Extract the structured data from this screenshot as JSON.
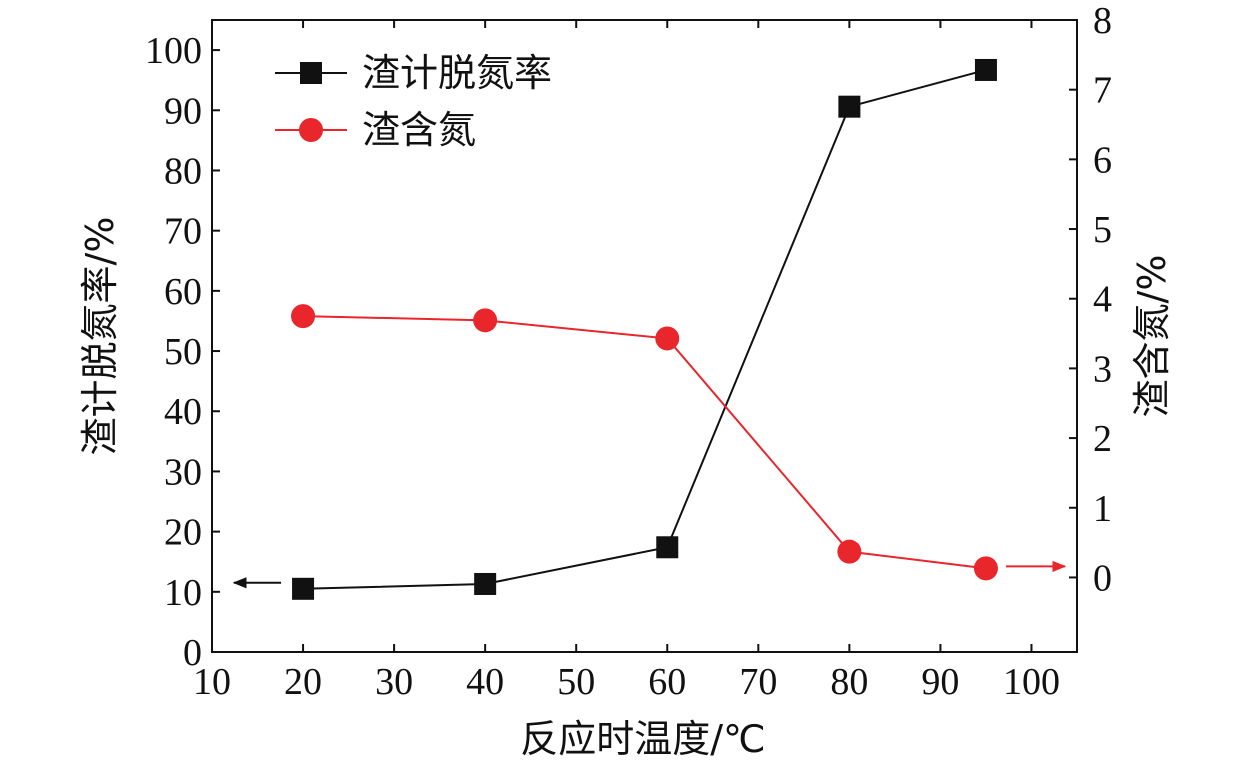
{
  "chart_data": {
    "type": "line",
    "xlabel": "反应时温度/℃",
    "ylabel_left": "渣计脱氮率/%",
    "ylabel_right": "渣含氮/%",
    "xlim": [
      10,
      105
    ],
    "ylim_left": [
      0,
      105
    ],
    "ylim_right": [
      -1.07,
      8
    ],
    "x_ticks": [
      "10",
      "20",
      "30",
      "40",
      "50",
      "60",
      "70",
      "80",
      "90",
      "100"
    ],
    "y_left_ticks": [
      "0",
      "10",
      "20",
      "30",
      "40",
      "50",
      "60",
      "70",
      "80",
      "90",
      "100"
    ],
    "y_right_ticks": [
      "0",
      "1",
      "2",
      "3",
      "4",
      "5",
      "6",
      "7",
      "8"
    ],
    "series": [
      {
        "name": "渣计脱氮率",
        "axis": "left",
        "marker": "square",
        "color": "#111111",
        "x": [
          20,
          40,
          60,
          80,
          95
        ],
        "values": [
          10.5,
          11.3,
          17.4,
          90.6,
          96.7
        ]
      },
      {
        "name": "渣含氮",
        "axis": "right",
        "marker": "circle",
        "color": "#e8262b",
        "x": [
          20,
          40,
          60,
          80,
          95
        ],
        "values": [
          3.75,
          3.69,
          3.43,
          0.37,
          0.13
        ]
      }
    ],
    "legend_position": "top-left",
    "grid": false,
    "annotations": [
      {
        "type": "arrow",
        "direction": "left",
        "series": "渣计脱氮率",
        "color": "#111111"
      },
      {
        "type": "arrow",
        "direction": "right",
        "series": "渣含氮",
        "color": "#e8262b"
      }
    ]
  }
}
